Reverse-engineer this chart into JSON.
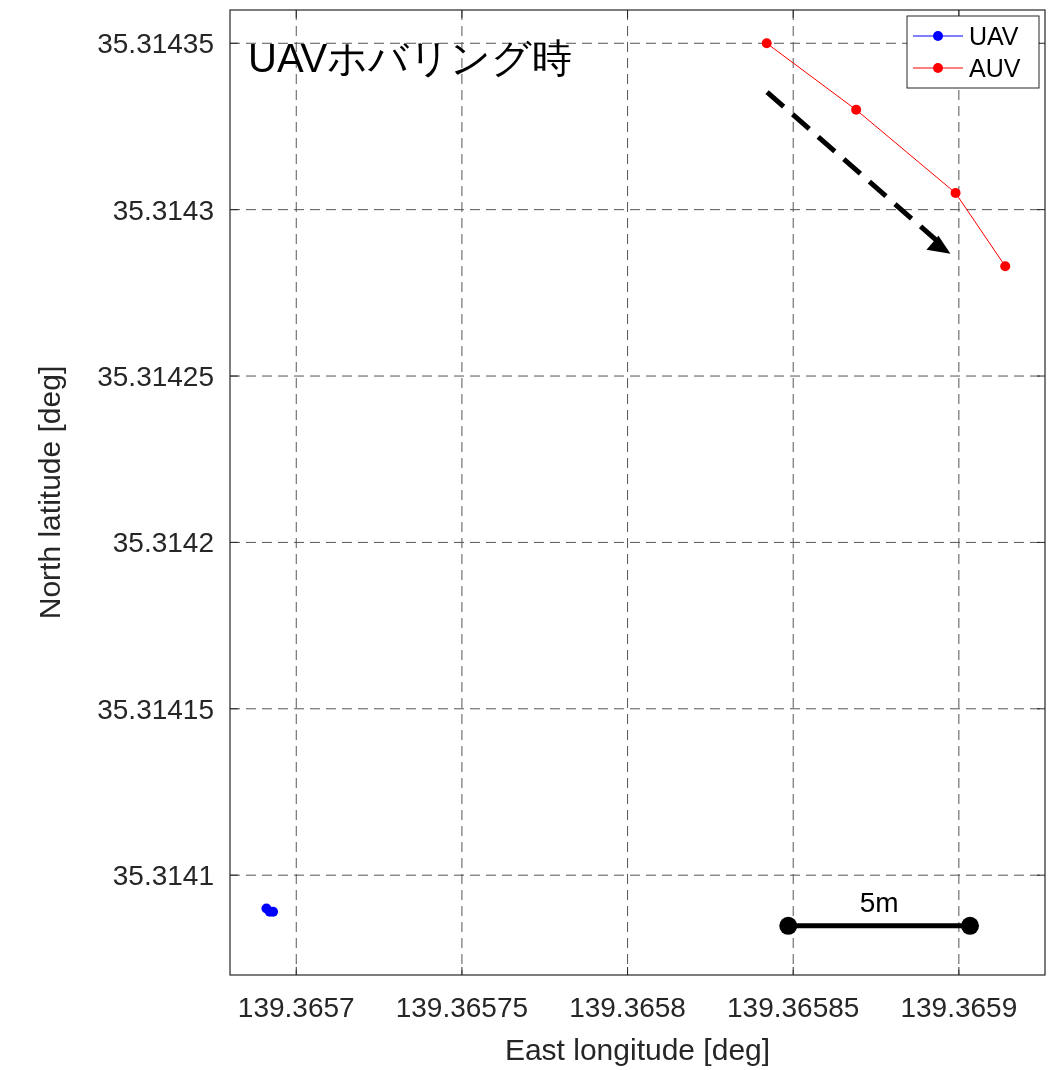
{
  "chart_data": {
    "type": "line",
    "title": "UAVホバリング時",
    "xlabel": "East longitude [deg]",
    "ylabel": "North latitude [deg]",
    "series": [
      {
        "name": "UAV",
        "type": "scatter",
        "color": "#0000ff",
        "x": [
          139.365691,
          139.365693,
          139.365692
        ],
        "values": [
          35.31409,
          35.314089,
          35.314089
        ]
      },
      {
        "name": "AUV",
        "color": "#ff0000",
        "x": [
          139.365842,
          139.365869,
          139.365899,
          139.365914
        ],
        "values": [
          35.31435,
          35.31433,
          35.314305,
          35.314283
        ]
      }
    ],
    "xlim": [
      139.36568,
      139.365926
    ],
    "ylim": [
      35.31407,
      35.31436
    ],
    "xticks": [
      139.3657,
      139.36575,
      139.3658,
      139.36585,
      139.3659
    ],
    "yticks": [
      35.3141,
      35.31415,
      35.3142,
      35.31425,
      35.3143,
      35.31435
    ],
    "grid": true,
    "legend": "top right",
    "marker": "circle",
    "line_style": "solid",
    "annotations": [
      "5m"
    ]
  }
}
